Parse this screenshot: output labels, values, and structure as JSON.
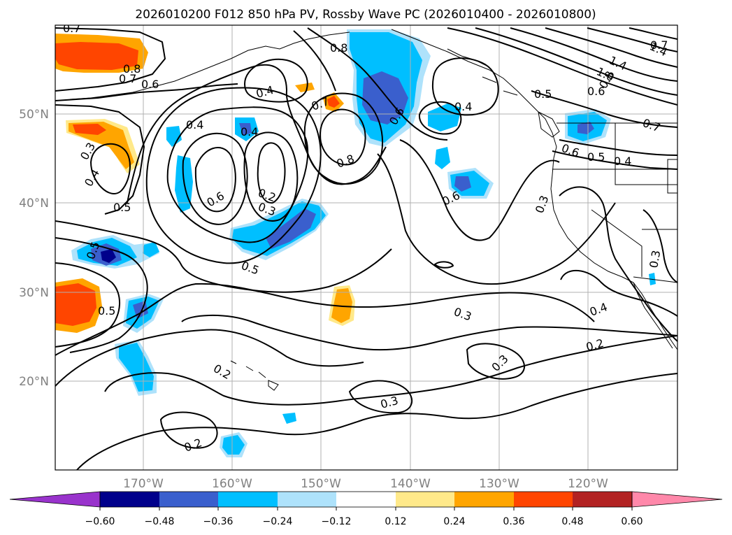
{
  "title": "2026010200 F012 850 hPa PV, Rossby Wave PC (2026010400 - 2026010800)",
  "axes": {
    "lon_labels": [
      "170°W",
      "160°W",
      "150°W",
      "140°W",
      "130°W",
      "120°W"
    ],
    "lat_labels": [
      "50°N",
      "40°N",
      "30°N",
      "20°N"
    ]
  },
  "colorbar": {
    "ticks": [
      "−0.60",
      "−0.48",
      "−0.36",
      "−0.24",
      "−0.12",
      "0.12",
      "0.24",
      "0.36",
      "0.48",
      "0.60"
    ],
    "colors": {
      "under": "#9933cc",
      "b1": "#00008b",
      "b2": "#3a5fcd",
      "b3": "#00bfff",
      "b4": "#aee2fb",
      "b5": "#ffffff",
      "b6": "#ffe98a",
      "b7": "#ffa500",
      "b8": "#ff4500",
      "b9": "#b22222",
      "over": "#ff88aa"
    }
  },
  "contour_labels": [
    {
      "id": "c1",
      "text": "0.7"
    },
    {
      "id": "c2",
      "text": "0.8"
    },
    {
      "id": "c3",
      "text": "0.7"
    },
    {
      "id": "c4",
      "text": "0.6"
    },
    {
      "id": "c5",
      "text": "0.8"
    },
    {
      "id": "c6",
      "text": "1.4"
    },
    {
      "id": "c7",
      "text": "1.4"
    },
    {
      "id": "c8",
      "text": "1.0"
    },
    {
      "id": "c9",
      "text": "0.8"
    },
    {
      "id": "c10",
      "text": "0.5"
    },
    {
      "id": "c11",
      "text": "0.6"
    },
    {
      "id": "c12",
      "text": "0.4"
    },
    {
      "id": "c13",
      "text": "0.7"
    },
    {
      "id": "c14",
      "text": "0.6"
    },
    {
      "id": "c15",
      "text": "0.4"
    },
    {
      "id": "c16",
      "text": "0.4"
    },
    {
      "id": "c17",
      "text": "0.4"
    },
    {
      "id": "c18",
      "text": "0.3"
    },
    {
      "id": "c19",
      "text": "0.4"
    },
    {
      "id": "c20",
      "text": "0.8"
    },
    {
      "id": "c21",
      "text": "0.7"
    },
    {
      "id": "c22",
      "text": "0.2"
    },
    {
      "id": "c23",
      "text": "0.3"
    },
    {
      "id": "c24",
      "text": "0.6"
    },
    {
      "id": "c25",
      "text": "0.5"
    },
    {
      "id": "c26",
      "text": "0.6"
    },
    {
      "id": "c27",
      "text": "0.5"
    },
    {
      "id": "c28",
      "text": "0.4"
    },
    {
      "id": "c29",
      "text": "0.3"
    },
    {
      "id": "c30",
      "text": "0.3"
    },
    {
      "id": "c31",
      "text": "0.6"
    },
    {
      "id": "c32",
      "text": "0.5"
    },
    {
      "id": "c33",
      "text": "0.5"
    },
    {
      "id": "c34",
      "text": "0.5"
    },
    {
      "id": "c35",
      "text": "0.3"
    },
    {
      "id": "c36",
      "text": "0.4"
    },
    {
      "id": "c37",
      "text": "0.2"
    },
    {
      "id": "c38",
      "text": "0.3"
    },
    {
      "id": "c39",
      "text": "0.3"
    },
    {
      "id": "c40",
      "text": "0.2"
    },
    {
      "id": "c41",
      "text": "0.2"
    },
    {
      "id": "c42",
      "text": "0.7"
    }
  ]
}
